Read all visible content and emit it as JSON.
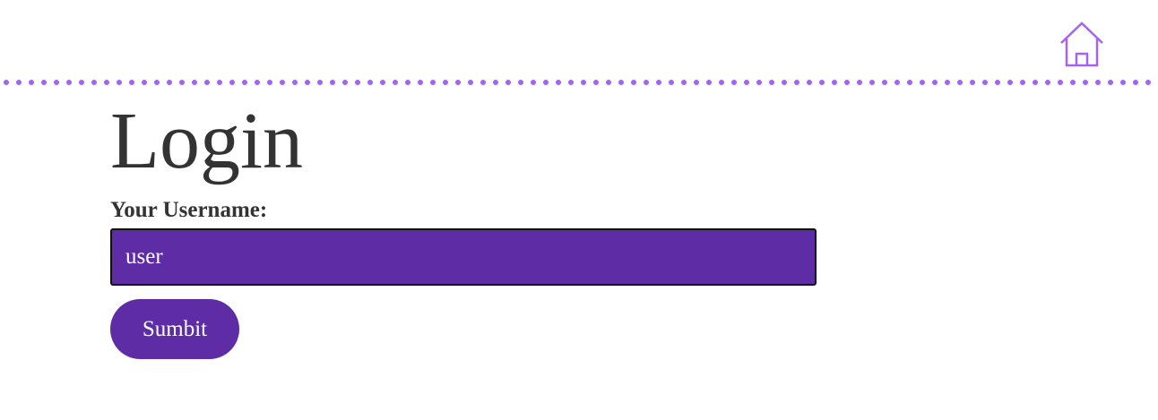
{
  "header": {
    "home_icon": "home-icon",
    "accent_color": "#a463f2"
  },
  "login": {
    "title": "Login",
    "username_label": "Your Username:",
    "username_value": "user",
    "submit_label": "Sumbit",
    "input_bg_color": "#5e2ca5",
    "button_bg_color": "#5e2ca5"
  }
}
